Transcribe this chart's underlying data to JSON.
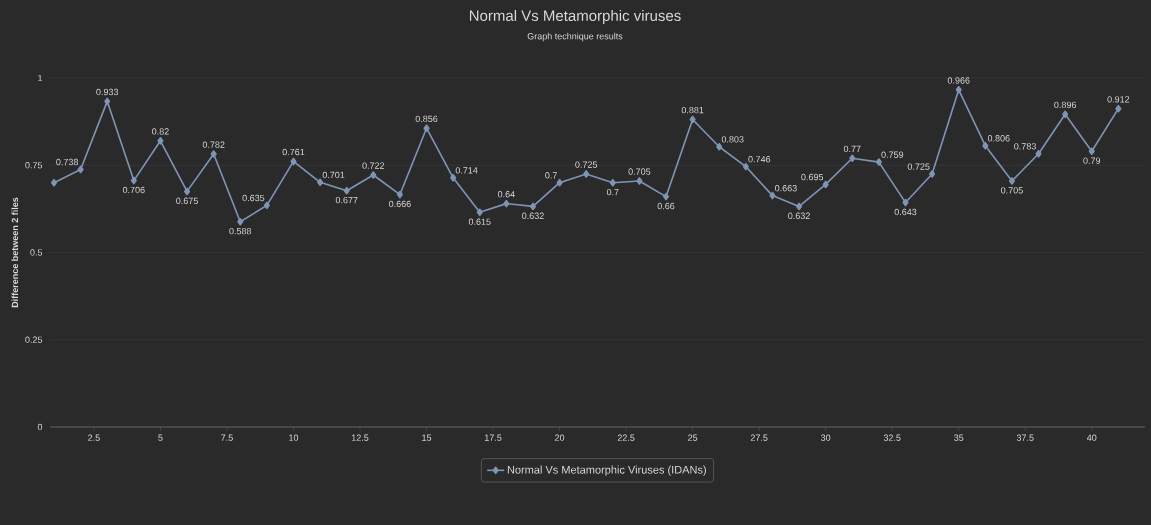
{
  "chart_data": {
    "type": "line",
    "title": "Normal Vs Metamorphic viruses",
    "subtitle": "Graph technique results",
    "ylabel": "Difference between 2 files",
    "x": [
      1,
      2,
      3,
      4,
      5,
      6,
      7,
      8,
      9,
      10,
      11,
      12,
      13,
      14,
      15,
      16,
      17,
      18,
      19,
      20,
      21,
      22,
      23,
      24,
      25,
      26,
      27,
      28,
      29,
      30,
      31,
      32,
      33,
      34,
      35,
      36,
      37,
      38,
      39,
      40,
      41
    ],
    "series": [
      {
        "name": "Normal Vs Metamorphic Viruses (IDANs)",
        "color": "#7f95b5",
        "values": [
          0.7,
          0.738,
          0.933,
          0.706,
          0.82,
          0.675,
          0.782,
          0.588,
          0.635,
          0.761,
          0.701,
          0.677,
          0.722,
          0.666,
          0.856,
          0.714,
          0.615,
          0.64,
          0.632,
          0.7,
          0.725,
          0.7,
          0.705,
          0.66,
          0.881,
          0.803,
          0.746,
          0.663,
          0.632,
          0.695,
          0.77,
          0.759,
          0.643,
          0.725,
          0.966,
          0.806,
          0.705,
          0.783,
          0.896,
          0.79,
          0.912
        ],
        "value_labels": [
          null,
          "0.738",
          "0.933",
          "0.706",
          "0.82",
          "0.675",
          "0.782",
          "0.588",
          "0.635",
          "0.761",
          "0.701",
          "0.677",
          "0.722",
          "0.666",
          "0.856",
          "0.714",
          "0.615",
          "0.64",
          "0.632",
          "0.7",
          "0.725",
          "0.7",
          "0.705",
          "0.66",
          "0.881",
          "0.803",
          "0.746",
          "0.663",
          "0.632",
          "0.695",
          "0.77",
          "0.759",
          "0.643",
          "0.725",
          "0.966",
          "0.806",
          "0.705",
          "0.783",
          "0.896",
          "0.79",
          "0.912"
        ]
      }
    ],
    "xlim": [
      0.85,
      42.0
    ],
    "ylim": [
      0,
      1
    ],
    "xticks": [
      2.5,
      5,
      7.5,
      10,
      12.5,
      15,
      17.5,
      20,
      22.5,
      25,
      27.5,
      30,
      32.5,
      35,
      37.5,
      40
    ],
    "yticks": [
      0,
      0.25,
      0.5,
      0.75,
      1
    ],
    "grid": "y",
    "legend": "bottom",
    "marker": "diamond",
    "line_style": "solid"
  }
}
